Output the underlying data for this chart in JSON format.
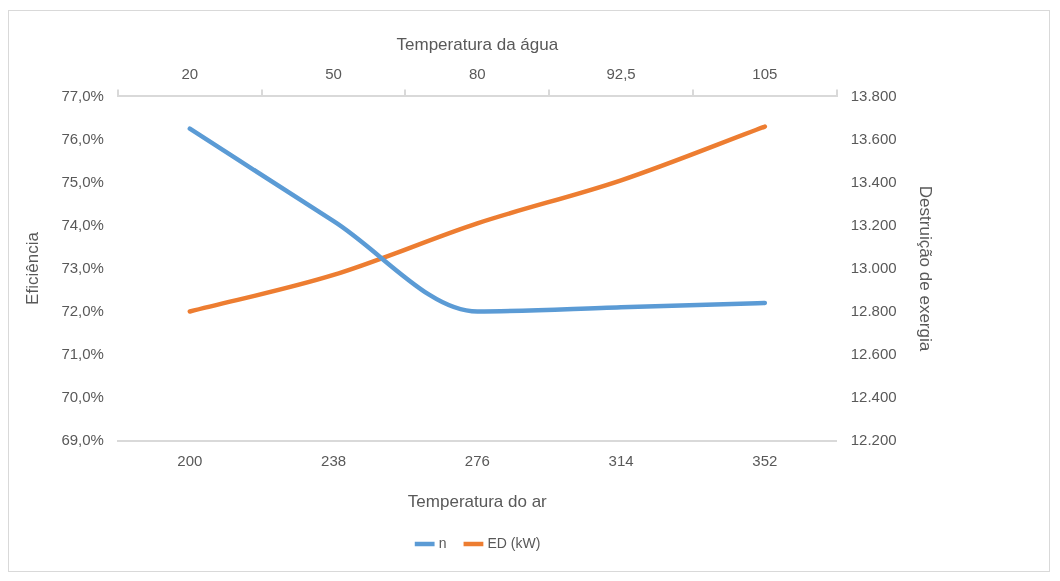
{
  "chart_data": {
    "type": "line",
    "categories": [
      "200",
      "238",
      "276",
      "314",
      "352"
    ],
    "annotations": [
      "20",
      "50",
      "80",
      "92,5",
      "105"
    ],
    "xlabel": "Temperatura do ar",
    "x2label": "Temperatura da água",
    "ylabel": "Eficiência",
    "y2label": "Destruição de exergia",
    "series": [
      {
        "name": "n",
        "color": "#5b9bd5",
        "values": [
          76.25,
          74.1,
          72.0,
          72.1,
          72.2
        ]
      },
      {
        "name": "ED (kW)",
        "color": "#ed7d31",
        "axis": "y2",
        "values": [
          12800,
          12970,
          13210,
          13410,
          13660
        ]
      }
    ],
    "ylim": [
      69,
      77
    ],
    "yticks": [
      {
        "value": 69,
        "label": "69,0%"
      },
      {
        "value": 70,
        "label": "70,0%"
      },
      {
        "value": 71,
        "label": "71,0%"
      },
      {
        "value": 72,
        "label": "72,0%"
      },
      {
        "value": 73,
        "label": "73,0%"
      },
      {
        "value": 74,
        "label": "74,0%"
      },
      {
        "value": 75,
        "label": "75,0%"
      },
      {
        "value": 76,
        "label": "76,0%"
      },
      {
        "value": 77,
        "label": "77,0%"
      }
    ],
    "y2lim": [
      12200,
      13800
    ],
    "y2ticks": [
      {
        "value": 12200,
        "label": "12.200"
      },
      {
        "value": 12400,
        "label": "12.400"
      },
      {
        "value": 12600,
        "label": "12.600"
      },
      {
        "value": 12800,
        "label": "12.800"
      },
      {
        "value": 13000,
        "label": "13.000"
      },
      {
        "value": 13200,
        "label": "13.200"
      },
      {
        "value": 13400,
        "label": "13.400"
      },
      {
        "value": 13600,
        "label": "13.600"
      },
      {
        "value": 13800,
        "label": "13.800"
      }
    ],
    "legend": "bottom",
    "grid": false,
    "marker": "none",
    "line_style": "solid"
  }
}
